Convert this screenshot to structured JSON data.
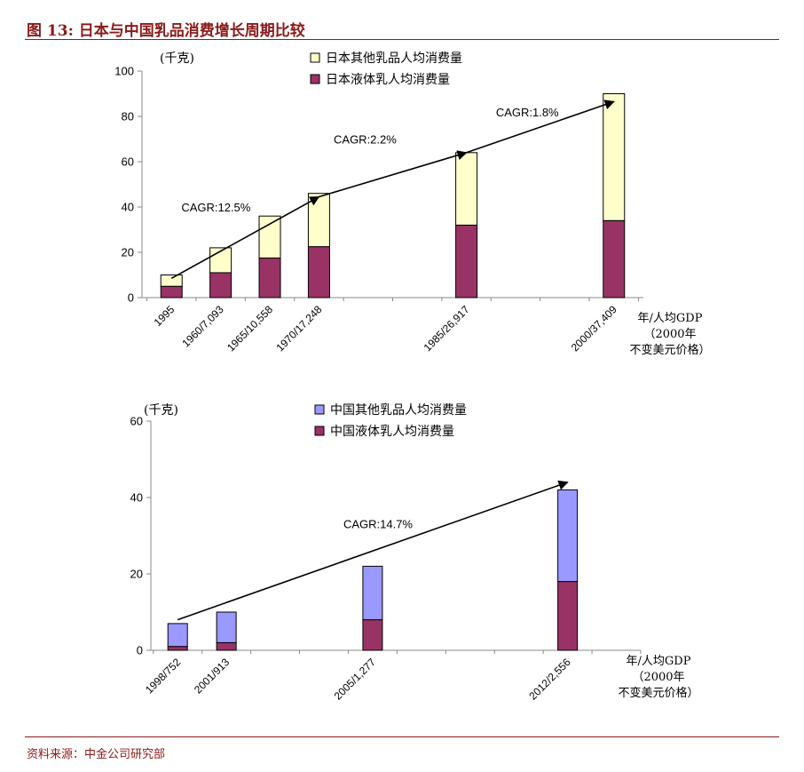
{
  "figure": {
    "title": "图 13:  日本与中国乳品消费增长周期比较",
    "source": "资料来源：中金公司研究部"
  },
  "colors": {
    "brand": "#8b1a1a",
    "liquid": "#993366",
    "japan_other": "#ffffcc",
    "china_other": "#9999ff"
  },
  "chart_data": [
    {
      "type": "bar",
      "stacked": true,
      "unit_label": "(千克)",
      "categories": [
        "1995",
        "1960/7,093",
        "1965/10,558",
        "1970/17,248",
        "1985/26,917",
        "2000/37,409"
      ],
      "x": [
        0,
        1,
        2,
        3,
        6,
        9
      ],
      "xlim": [
        -0.6,
        9.6
      ],
      "series": [
        {
          "name": "日本液体乳人均消费量",
          "color_key": "liquid",
          "values": [
            5,
            11,
            17.5,
            22.5,
            32,
            34
          ]
        },
        {
          "name": "日本其他乳品人均消费量",
          "color_key": "japan_other",
          "values": [
            5,
            11,
            18.5,
            23.5,
            32,
            56
          ]
        }
      ],
      "legend_order": [
        1,
        0
      ],
      "legend_position": "top-center",
      "ylim": [
        0,
        100
      ],
      "yticks": [
        0,
        20,
        40,
        60,
        80,
        100
      ],
      "xlabel_lines": [
        "年/人均GDP",
        "（2000年",
        "不变美元价格）"
      ],
      "annotations": [
        {
          "text": "CAGR:12.5%",
          "from": [
            0,
            8.5
          ],
          "to": [
            3,
            44.5
          ],
          "label_at": [
            0.2,
            38
          ]
        },
        {
          "text": "CAGR:2.2%",
          "from": [
            3,
            44.5
          ],
          "to": [
            6,
            64
          ],
          "label_at": [
            3.3,
            68
          ]
        },
        {
          "text": "CAGR:1.8%",
          "from": [
            6,
            64
          ],
          "to": [
            9,
            86.5
          ],
          "label_at": [
            6.6,
            80
          ]
        }
      ]
    },
    {
      "type": "bar",
      "stacked": true,
      "unit_label": "(千克)",
      "categories": [
        "1998/752",
        "2001/913",
        "2005/1,277",
        "2012/2,556"
      ],
      "x": [
        0,
        1,
        4,
        8
      ],
      "xlim": [
        -0.55,
        9.5
      ],
      "series": [
        {
          "name": "中国液体乳人均消费量",
          "color_key": "liquid",
          "values": [
            1,
            2,
            8,
            18
          ]
        },
        {
          "name": "中国其他乳品人均消费量",
          "color_key": "china_other",
          "values": [
            6,
            8,
            14,
            24
          ]
        }
      ],
      "legend_order": [
        1,
        0
      ],
      "legend_position": "top-center",
      "ylim": [
        0,
        60
      ],
      "yticks": [
        0,
        20,
        40,
        60
      ],
      "xlabel_lines": [
        "年/人均GDP",
        "（2000年",
        "不变美元价格）"
      ],
      "annotations": [
        {
          "text": "CAGR:14.7%",
          "from": [
            0,
            8
          ],
          "to": [
            8,
            44
          ],
          "label_at": [
            3.4,
            32
          ]
        }
      ]
    }
  ]
}
